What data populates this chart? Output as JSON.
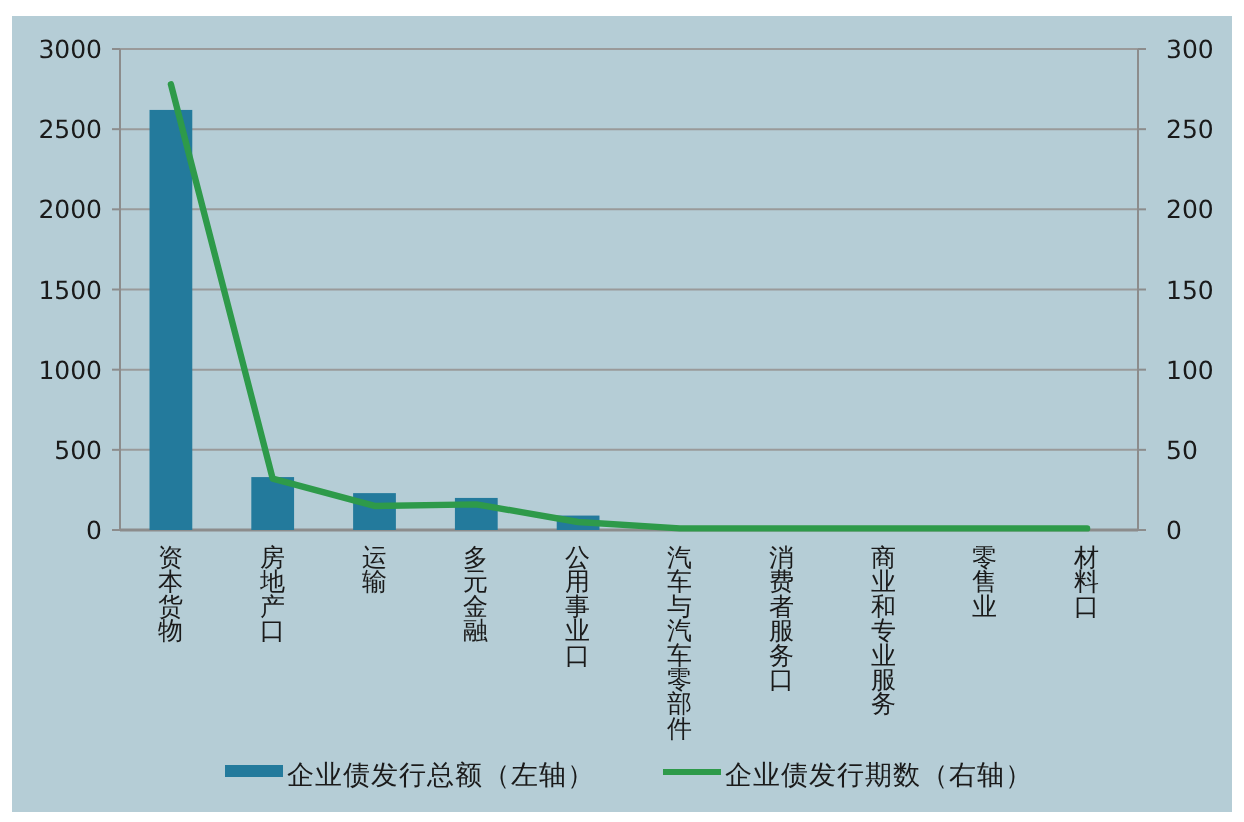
{
  "chart_data": {
    "type": "bar",
    "categories": [
      "资本货物",
      "房地产口",
      "运输",
      "多元金融",
      "公用事业口",
      "汽车与汽车零部件",
      "消费者服务口",
      "商业和专业服务",
      "零售业",
      "材料口"
    ],
    "series": [
      {
        "name": "企业债发行总额（左轴）",
        "color": "#237a9c",
        "values": [
          2620,
          330,
          230,
          200,
          90,
          null,
          null,
          null,
          null,
          null
        ]
      },
      {
        "name": "企业债发行期数（右轴）",
        "type": "line",
        "axis": "y2",
        "color": "#2e9a4a",
        "values": [
          278,
          32,
          15,
          16,
          5,
          1,
          1,
          1,
          1,
          1
        ]
      }
    ],
    "ylim": [
      0,
      3000
    ],
    "yticks": [
      0,
      500,
      1000,
      1500,
      2000,
      2500,
      3000
    ],
    "y2lim": [
      0,
      300
    ],
    "y2ticks": [
      0,
      50,
      100,
      150,
      200,
      250,
      300
    ],
    "grid": "y",
    "legend": "bottom",
    "marker": "none"
  }
}
